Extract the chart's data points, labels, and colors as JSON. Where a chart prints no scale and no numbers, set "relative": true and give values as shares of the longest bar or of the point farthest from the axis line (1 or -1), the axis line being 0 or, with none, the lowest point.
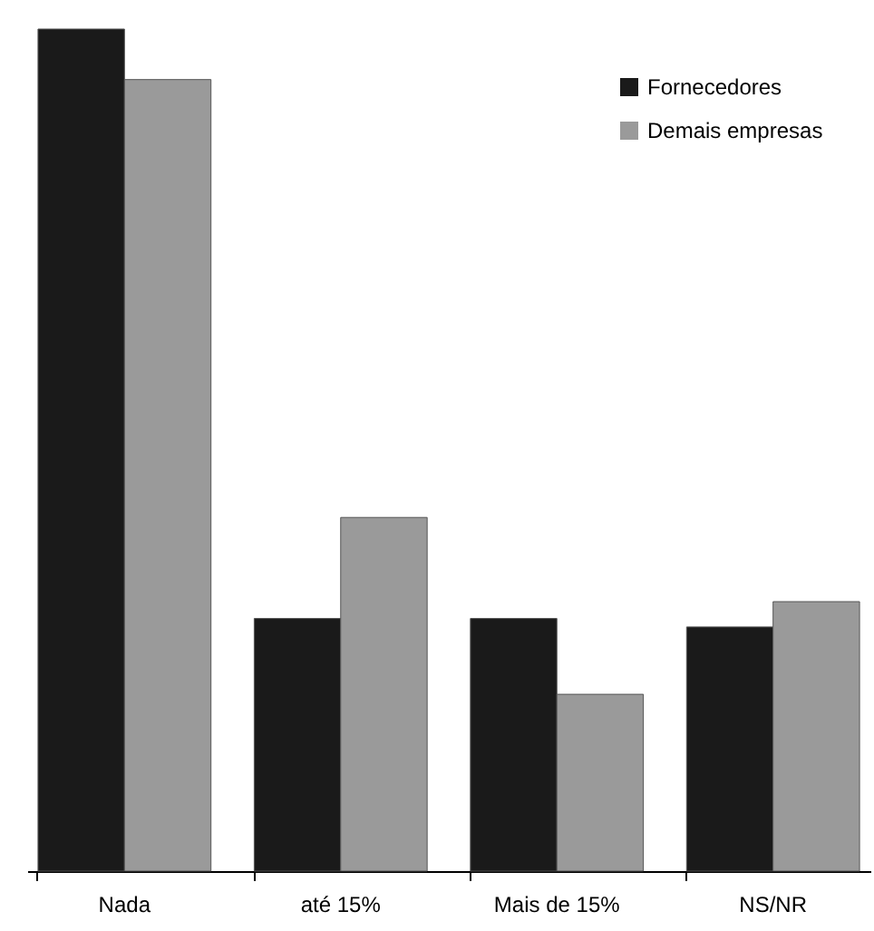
{
  "chart_data": {
    "type": "bar",
    "relative": true,
    "categories": [
      "Nada",
      "até 15%",
      "Mais de 15%",
      "NS/NR"
    ],
    "series": [
      {
        "name": "Fornecedores",
        "color": "#1a1a1a",
        "values": [
          1,
          0.3,
          0.3,
          0.29
        ]
      },
      {
        "name": "Demais empresas",
        "color": "#9a9a9a",
        "values": [
          0.94,
          0.42,
          0.21,
          0.32
        ]
      }
    ],
    "legend": "top right"
  }
}
